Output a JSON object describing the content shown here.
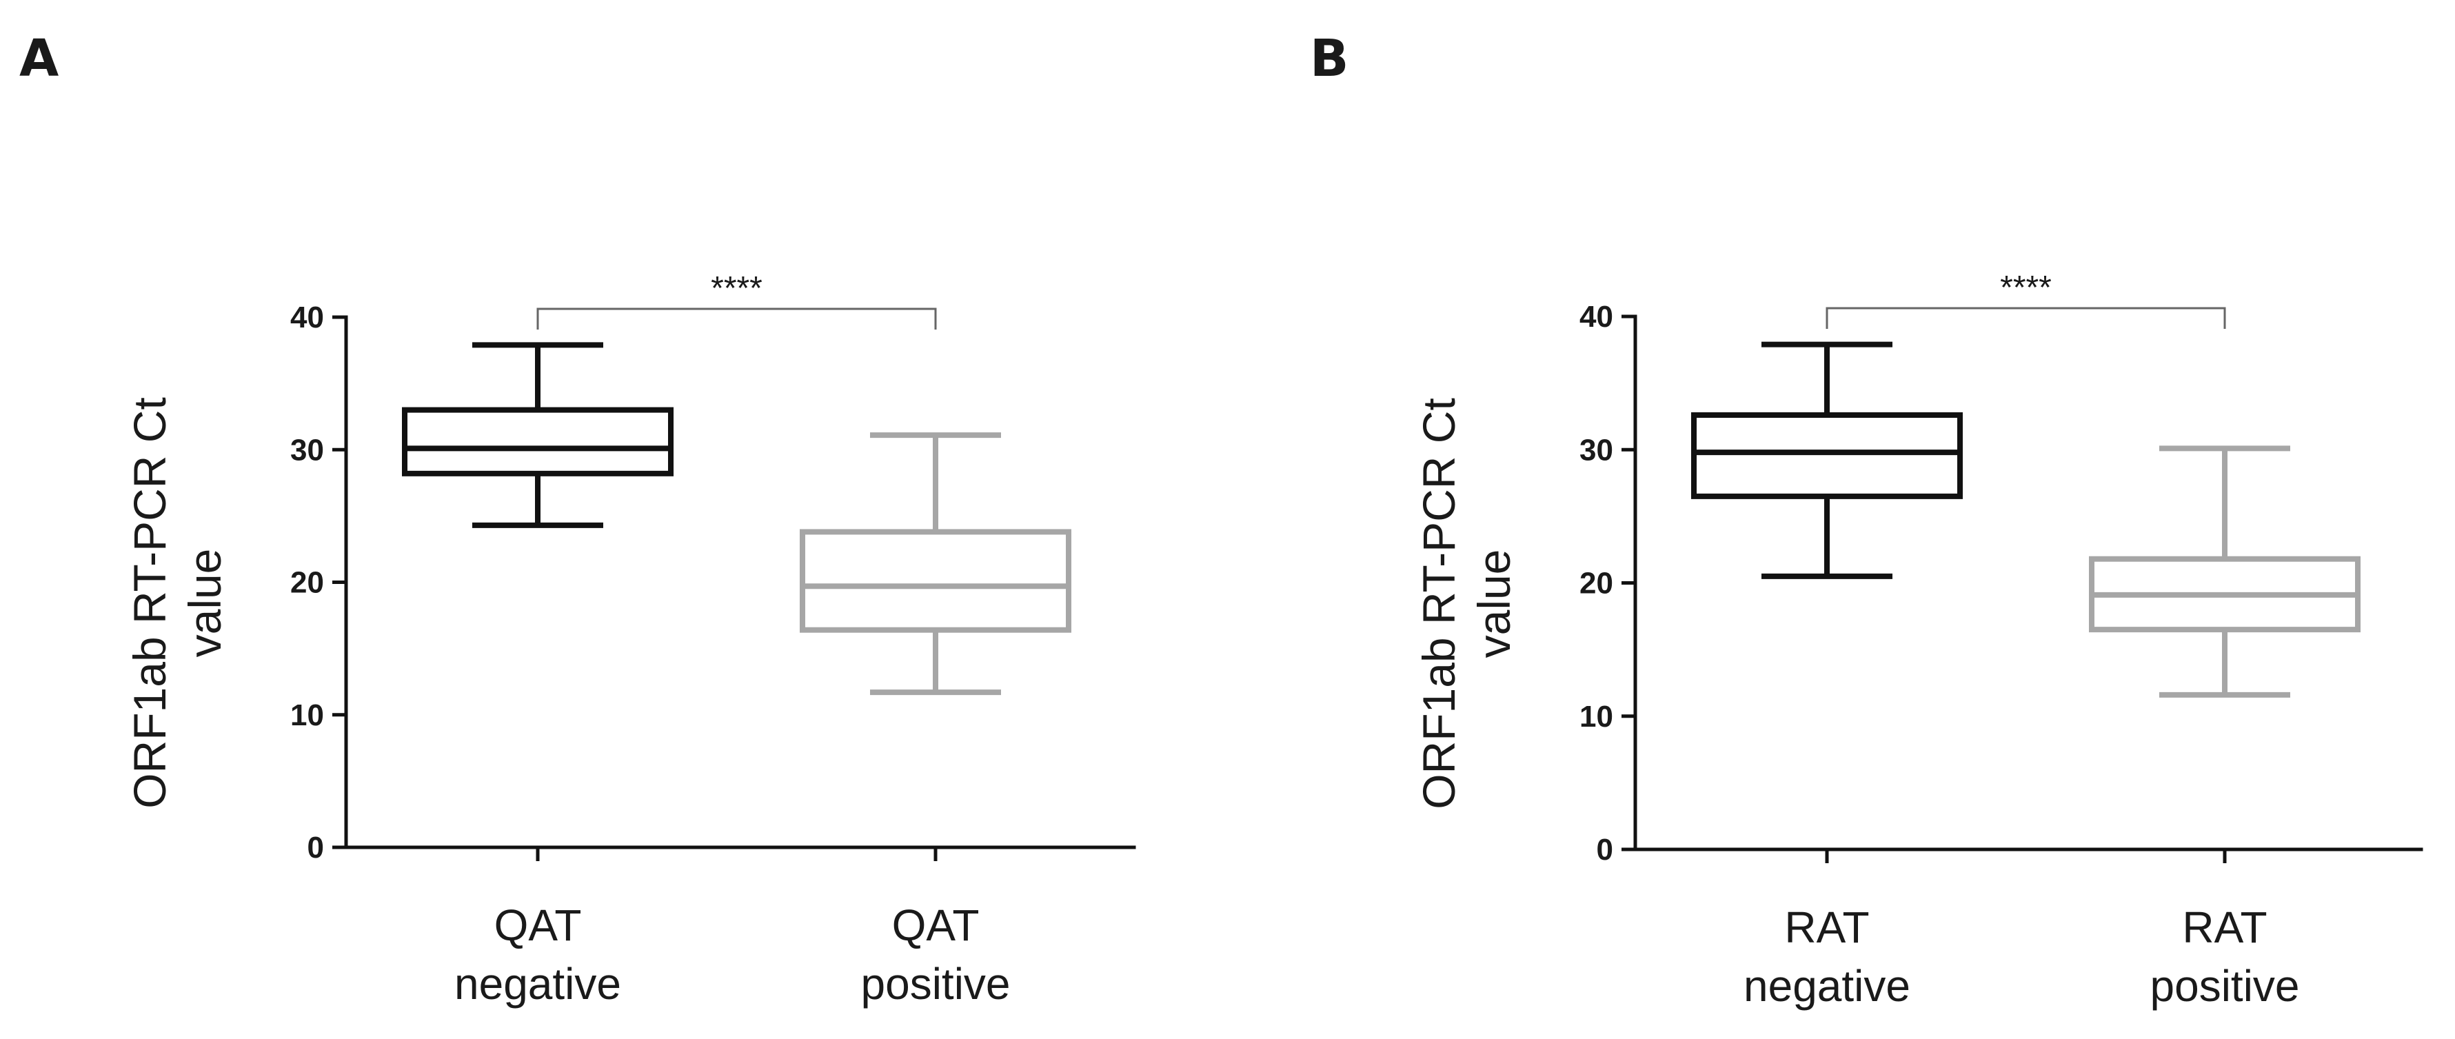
{
  "chart_data": [
    {
      "type": "box",
      "panel_label": "A",
      "ylabel": [
        "ORF1ab RT-PCR Ct",
        "value"
      ],
      "ylim": [
        0,
        40
      ],
      "yticks": [
        0,
        10,
        20,
        30,
        40
      ],
      "categories": [
        {
          "lines": [
            "QAT",
            "negative"
          ]
        },
        {
          "lines": [
            "QAT",
            "positive"
          ]
        }
      ],
      "boxes": [
        {
          "min": 24.3,
          "q1": 28.2,
          "median": 30.1,
          "q3": 33.0,
          "max": 37.9,
          "color": "#111111"
        },
        {
          "min": 11.7,
          "q1": 16.4,
          "median": 19.7,
          "q3": 23.8,
          "max": 31.1,
          "color": "#a6a6a6"
        }
      ],
      "significance": {
        "pair": [
          0,
          1
        ],
        "label": "****"
      }
    },
    {
      "type": "box",
      "panel_label": "B",
      "ylabel": [
        "ORF1ab RT-PCR Ct",
        "value"
      ],
      "ylim": [
        0,
        40
      ],
      "yticks": [
        0,
        10,
        20,
        30,
        40
      ],
      "categories": [
        {
          "lines": [
            "RAT",
            "negative"
          ]
        },
        {
          "lines": [
            "RAT",
            "positive"
          ]
        }
      ],
      "boxes": [
        {
          "min": 20.5,
          "q1": 26.5,
          "median": 29.8,
          "q3": 32.6,
          "max": 37.9,
          "color": "#111111"
        },
        {
          "min": 11.6,
          "q1": 16.5,
          "median": 19.1,
          "q3": 21.8,
          "max": 30.1,
          "color": "#a6a6a6"
        }
      ],
      "significance": {
        "pair": [
          0,
          1
        ],
        "label": "****"
      }
    }
  ]
}
